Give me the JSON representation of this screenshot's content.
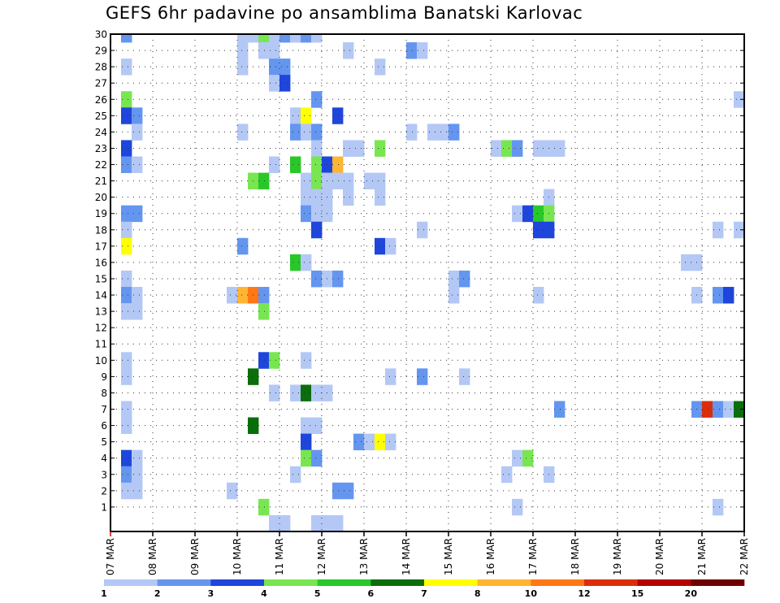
{
  "title": "GEFS 6hr padavine po ansamblima Banatski Karlovac",
  "chart_data": {
    "type": "heatmap",
    "title": "GEFS 6hr padavine po ansamblima Banatski Karlovac",
    "xlabel": "",
    "ylabel": "",
    "x_tick_labels": [
      "07 MAR",
      "08 MAR",
      "09 MAR",
      "10 MAR",
      "11 MAR",
      "12 MAR",
      "13 MAR",
      "14 MAR",
      "15 MAR",
      "16 MAR",
      "17 MAR",
      "18 MAR",
      "19 MAR",
      "20 MAR",
      "21 MAR",
      "22 MAR"
    ],
    "y_members": [
      1,
      2,
      3,
      4,
      5,
      6,
      7,
      8,
      9,
      10,
      11,
      12,
      13,
      14,
      15,
      16,
      17,
      18,
      19,
      20,
      21,
      22,
      23,
      24,
      25,
      26,
      27,
      28,
      29,
      30
    ],
    "grid": true,
    "colorbar": {
      "position": "bottom",
      "tick_labels": [
        "1",
        "2",
        "3",
        "4",
        "5",
        "6",
        "7",
        "8",
        "10",
        "12",
        "15",
        "20"
      ],
      "colors": [
        "#b4c8f5",
        "#6496f0",
        "#1e46dc",
        "#78e650",
        "#28c828",
        "#0a6e0a",
        "#ffff00",
        "#ffb432",
        "#ff7814",
        "#dc2d0a",
        "#b40000",
        "#6e0000"
      ]
    },
    "cells": [
      [
        1,
        30,
        2
      ],
      [
        12,
        30,
        1
      ],
      [
        13,
        30,
        1
      ],
      [
        14,
        30,
        4
      ],
      [
        15,
        30,
        1
      ],
      [
        16,
        30,
        2
      ],
      [
        17,
        30,
        1
      ],
      [
        18,
        30,
        2
      ],
      [
        19,
        30,
        1
      ],
      [
        12,
        29,
        1
      ],
      [
        14,
        29,
        1
      ],
      [
        15,
        29,
        1
      ],
      [
        22,
        29,
        1
      ],
      [
        28,
        29,
        2
      ],
      [
        29,
        29,
        1
      ],
      [
        1,
        28,
        1
      ],
      [
        12,
        28,
        1
      ],
      [
        15,
        28,
        2
      ],
      [
        16,
        28,
        2
      ],
      [
        25,
        28,
        1
      ],
      [
        15,
        27,
        1
      ],
      [
        16,
        27,
        3
      ],
      [
        1,
        26,
        4
      ],
      [
        19,
        26,
        2
      ],
      [
        59,
        26,
        1
      ],
      [
        1,
        25,
        3
      ],
      [
        2,
        25,
        2
      ],
      [
        17,
        25,
        1
      ],
      [
        18,
        25,
        7
      ],
      [
        21,
        25,
        3
      ],
      [
        2,
        24,
        1
      ],
      [
        12,
        24,
        1
      ],
      [
        17,
        24,
        2
      ],
      [
        18,
        24,
        1
      ],
      [
        19,
        24,
        2
      ],
      [
        28,
        24,
        1
      ],
      [
        30,
        24,
        1
      ],
      [
        31,
        24,
        1
      ],
      [
        32,
        24,
        2
      ],
      [
        1,
        23,
        3
      ],
      [
        19,
        23,
        1
      ],
      [
        22,
        23,
        1
      ],
      [
        23,
        23,
        1
      ],
      [
        25,
        23,
        4
      ],
      [
        36,
        23,
        1
      ],
      [
        37,
        23,
        4
      ],
      [
        38,
        23,
        2
      ],
      [
        40,
        23,
        1
      ],
      [
        41,
        23,
        1
      ],
      [
        42,
        23,
        1
      ],
      [
        1,
        22,
        2
      ],
      [
        2,
        22,
        1
      ],
      [
        15,
        22,
        1
      ],
      [
        17,
        22,
        5
      ],
      [
        19,
        22,
        4
      ],
      [
        20,
        22,
        3
      ],
      [
        21,
        22,
        8
      ],
      [
        13,
        21,
        4
      ],
      [
        14,
        21,
        5
      ],
      [
        18,
        21,
        1
      ],
      [
        19,
        21,
        4
      ],
      [
        20,
        21,
        1
      ],
      [
        21,
        21,
        1
      ],
      [
        22,
        21,
        1
      ],
      [
        24,
        21,
        1
      ],
      [
        25,
        21,
        1
      ],
      [
        18,
        20,
        1
      ],
      [
        19,
        20,
        1
      ],
      [
        20,
        20,
        1
      ],
      [
        22,
        20,
        1
      ],
      [
        25,
        20,
        1
      ],
      [
        41,
        20,
        1
      ],
      [
        1,
        19,
        2
      ],
      [
        2,
        19,
        2
      ],
      [
        18,
        19,
        2
      ],
      [
        19,
        19,
        1
      ],
      [
        20,
        19,
        1
      ],
      [
        38,
        19,
        1
      ],
      [
        39,
        19,
        3
      ],
      [
        40,
        19,
        5
      ],
      [
        41,
        19,
        4
      ],
      [
        1,
        18,
        1
      ],
      [
        19,
        18,
        3
      ],
      [
        29,
        18,
        1
      ],
      [
        40,
        18,
        3
      ],
      [
        41,
        18,
        3
      ],
      [
        57,
        18,
        1
      ],
      [
        59,
        18,
        1
      ],
      [
        1,
        17,
        7
      ],
      [
        12,
        17,
        2
      ],
      [
        25,
        17,
        3
      ],
      [
        26,
        17,
        1
      ],
      [
        17,
        16,
        5
      ],
      [
        18,
        16,
        1
      ],
      [
        54,
        16,
        1
      ],
      [
        55,
        16,
        1
      ],
      [
        1,
        15,
        1
      ],
      [
        19,
        15,
        2
      ],
      [
        20,
        15,
        1
      ],
      [
        21,
        15,
        2
      ],
      [
        32,
        15,
        1
      ],
      [
        33,
        15,
        2
      ],
      [
        1,
        14,
        2
      ],
      [
        2,
        14,
        1
      ],
      [
        11,
        14,
        1
      ],
      [
        12,
        14,
        8
      ],
      [
        13,
        14,
        9
      ],
      [
        14,
        14,
        2
      ],
      [
        32,
        14,
        1
      ],
      [
        40,
        14,
        1
      ],
      [
        55,
        14,
        1
      ],
      [
        57,
        14,
        2
      ],
      [
        58,
        14,
        3
      ],
      [
        1,
        13,
        1
      ],
      [
        2,
        13,
        1
      ],
      [
        14,
        13,
        4
      ],
      [
        14,
        10,
        3
      ],
      [
        15,
        10,
        4
      ],
      [
        18,
        10,
        1
      ],
      [
        1,
        10,
        1
      ],
      [
        1,
        9,
        1
      ],
      [
        13,
        9,
        6
      ],
      [
        26,
        9,
        1
      ],
      [
        29,
        9,
        2
      ],
      [
        33,
        9,
        1
      ],
      [
        15,
        8,
        1
      ],
      [
        17,
        8,
        1
      ],
      [
        18,
        8,
        6
      ],
      [
        19,
        8,
        1
      ],
      [
        20,
        8,
        1
      ],
      [
        1,
        7,
        1
      ],
      [
        42,
        7,
        2
      ],
      [
        55,
        7,
        2
      ],
      [
        56,
        7,
        10
      ],
      [
        57,
        7,
        2
      ],
      [
        58,
        7,
        1
      ],
      [
        59,
        7,
        6
      ],
      [
        1,
        6,
        1
      ],
      [
        13,
        6,
        6
      ],
      [
        18,
        6,
        1
      ],
      [
        19,
        6,
        1
      ],
      [
        18,
        5,
        3
      ],
      [
        23,
        5,
        2
      ],
      [
        24,
        5,
        1
      ],
      [
        25,
        5,
        7
      ],
      [
        26,
        5,
        1
      ],
      [
        1,
        4,
        3
      ],
      [
        2,
        4,
        1
      ],
      [
        18,
        4,
        4
      ],
      [
        19,
        4,
        2
      ],
      [
        38,
        4,
        1
      ],
      [
        39,
        4,
        4
      ],
      [
        1,
        3,
        2
      ],
      [
        2,
        3,
        1
      ],
      [
        17,
        3,
        1
      ],
      [
        37,
        3,
        1
      ],
      [
        41,
        3,
        1
      ],
      [
        1,
        2,
        1
      ],
      [
        2,
        2,
        1
      ],
      [
        11,
        2,
        1
      ],
      [
        21,
        2,
        2
      ],
      [
        22,
        2,
        2
      ],
      [
        14,
        1,
        4
      ],
      [
        38,
        1,
        1
      ],
      [
        57,
        1,
        1
      ],
      [
        15,
        0,
        1
      ],
      [
        16,
        0,
        1
      ],
      [
        19,
        0,
        1
      ],
      [
        20,
        0,
        1
      ],
      [
        21,
        0,
        1
      ]
    ]
  }
}
